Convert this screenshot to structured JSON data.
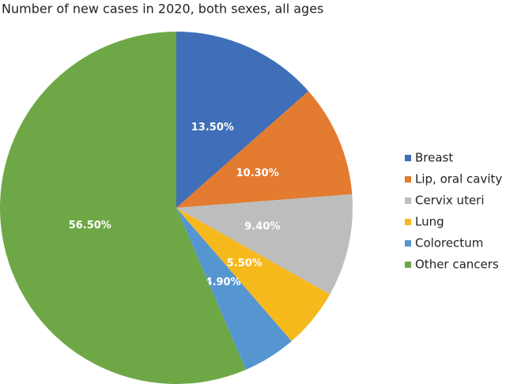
{
  "chart_data": {
    "type": "pie",
    "title": "Number of new cases in 2020, both sexes, all ages",
    "categories": [
      "Breast",
      "Lip, oral cavity",
      "Cervix uteri",
      "Lung",
      "Colorectum",
      "Other cancers"
    ],
    "values": [
      13.5,
      10.3,
      9.4,
      5.5,
      4.9,
      56.5
    ],
    "value_labels": [
      "13.50%",
      "10.30%",
      "9.40%",
      "5.50%",
      "4.90%",
      "56.50%"
    ],
    "colors": [
      "#3f6fb8",
      "#e37b31",
      "#bdbdbd",
      "#f6b91c",
      "#5696d0",
      "#6ea846"
    ],
    "legend": "right"
  }
}
